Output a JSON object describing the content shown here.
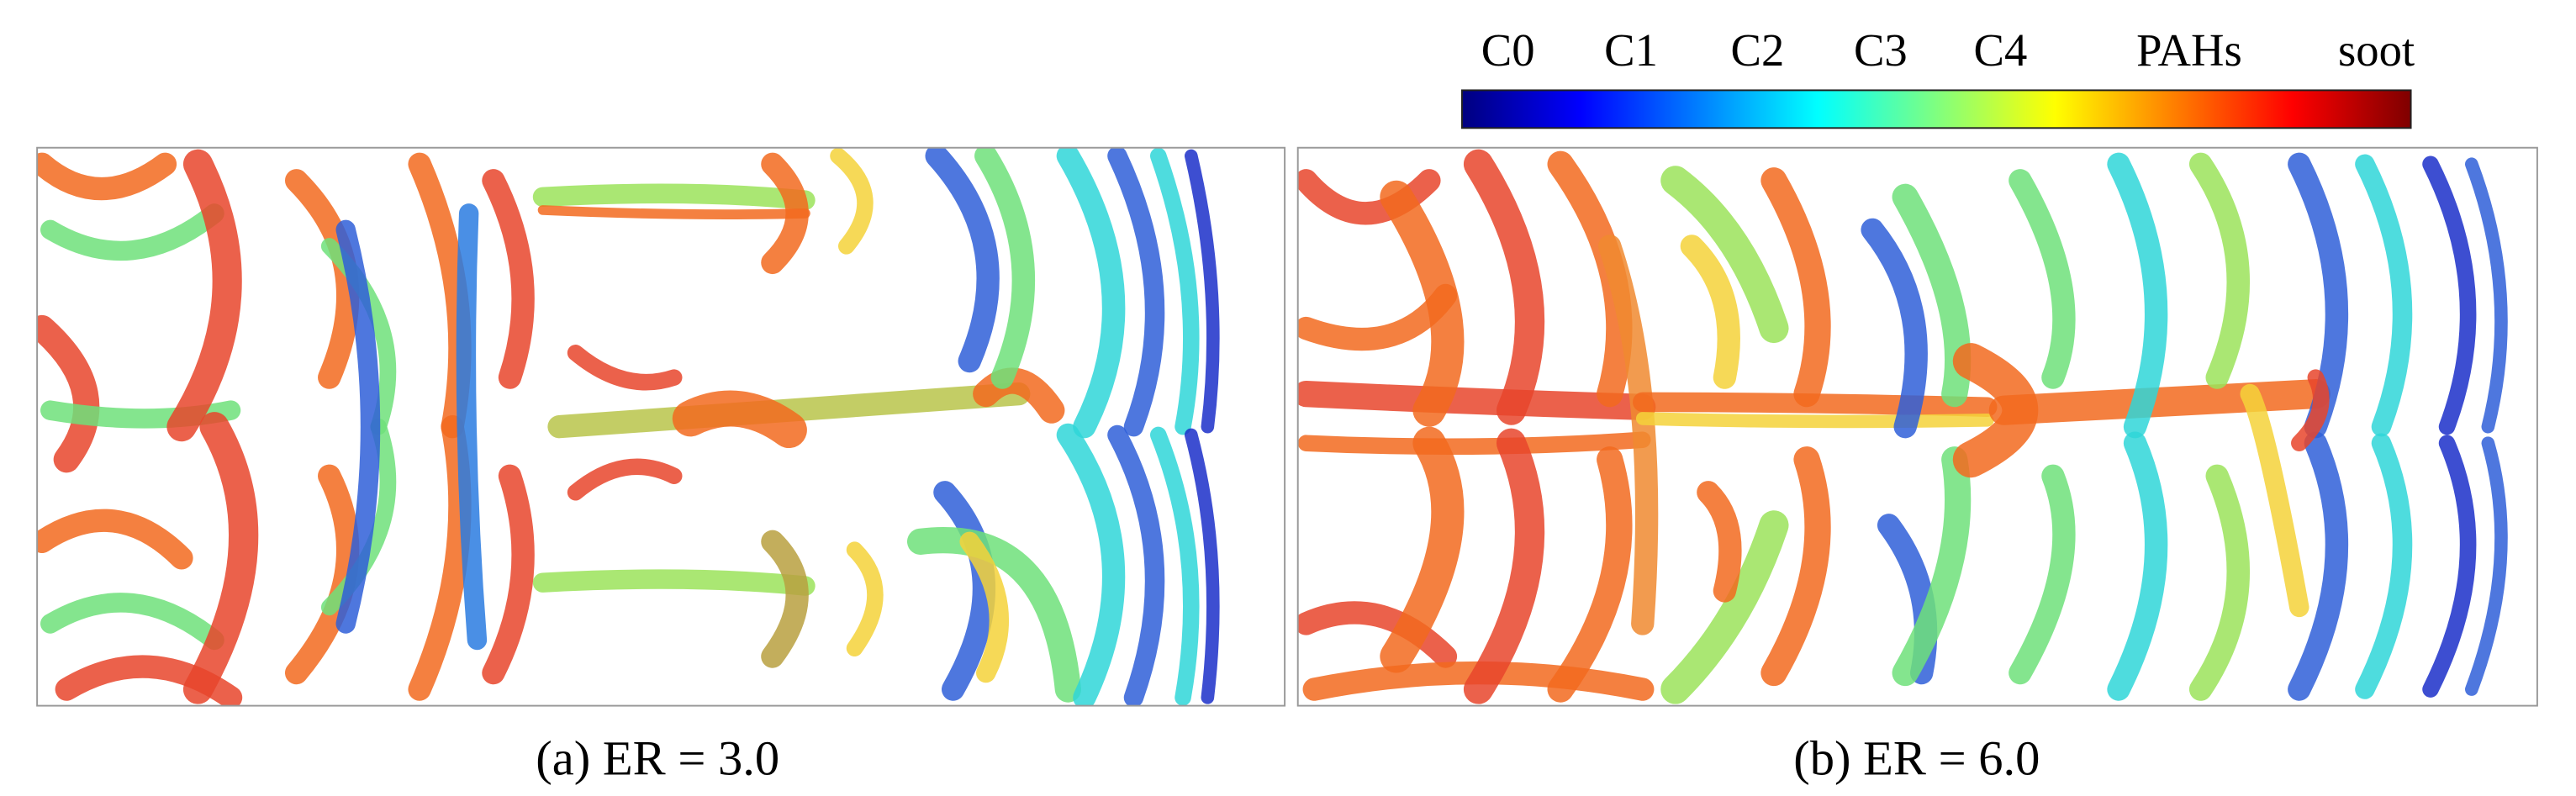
{
  "colorbar": {
    "labels": [
      "C0",
      "C1",
      "C2",
      "C3",
      "C4",
      "PAHs",
      "soot"
    ]
  },
  "panels": [
    {
      "caption": "(a) ER = 3.0"
    },
    {
      "caption": "(b) ER = 6.0"
    }
  ]
}
